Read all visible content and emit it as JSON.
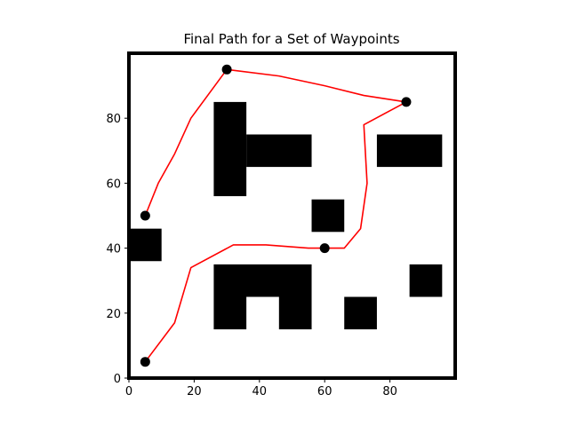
{
  "chart_data": {
    "type": "scatter",
    "title": "Final Path for a Set of Waypoints",
    "xlabel": "",
    "ylabel": "",
    "xlim": [
      0,
      100
    ],
    "ylim": [
      0,
      100
    ],
    "x_ticks": [
      0,
      20,
      40,
      60,
      80
    ],
    "y_ticks": [
      0,
      20,
      40,
      60,
      80
    ],
    "grid": false,
    "colors": {
      "path": "#ff0000",
      "waypoint": "#000000",
      "obstacle": "#000000"
    },
    "waypoints": [
      {
        "x": 5,
        "y": 5
      },
      {
        "x": 60,
        "y": 40
      },
      {
        "x": 85,
        "y": 85
      },
      {
        "x": 30,
        "y": 95
      },
      {
        "x": 5,
        "y": 50
      }
    ],
    "path": [
      [
        5,
        5
      ],
      [
        14,
        17
      ],
      [
        19,
        34
      ],
      [
        32,
        41
      ],
      [
        42,
        41
      ],
      [
        55,
        40
      ],
      [
        66,
        40
      ],
      [
        71,
        46
      ],
      [
        73,
        60
      ],
      [
        72,
        78
      ],
      [
        85,
        85
      ],
      [
        72,
        87
      ],
      [
        60,
        90
      ],
      [
        46,
        93
      ],
      [
        30,
        95
      ],
      [
        19,
        80
      ],
      [
        14,
        69
      ],
      [
        9,
        60
      ],
      [
        5,
        50
      ]
    ],
    "obstacles": [
      {
        "x0": 26,
        "x1": 36,
        "y0": 56,
        "y1": 85
      },
      {
        "x0": 36,
        "x1": 56,
        "y0": 65,
        "y1": 75
      },
      {
        "x0": 76,
        "x1": 96,
        "y0": 65,
        "y1": 75
      },
      {
        "x0": 56,
        "x1": 66,
        "y0": 45,
        "y1": 55
      },
      {
        "x0": 0,
        "x1": 10,
        "y0": 36,
        "y1": 46
      },
      {
        "x0": 26,
        "x1": 56,
        "y0": 25,
        "y1": 35
      },
      {
        "x0": 26,
        "x1": 36,
        "y0": 15,
        "y1": 25
      },
      {
        "x0": 46,
        "x1": 56,
        "y0": 15,
        "y1": 25
      },
      {
        "x0": 66,
        "x1": 76,
        "y0": 15,
        "y1": 25
      },
      {
        "x0": 86,
        "x1": 96,
        "y0": 25,
        "y1": 35
      }
    ]
  }
}
